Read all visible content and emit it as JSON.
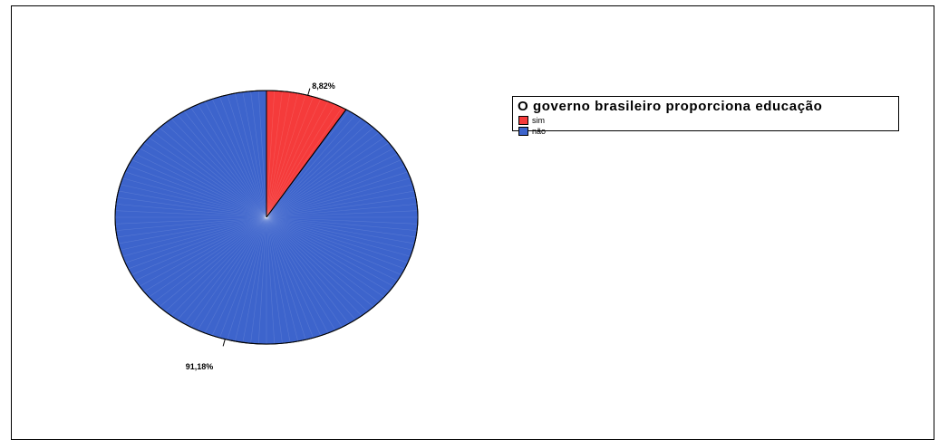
{
  "chart_data": {
    "type": "pie",
    "title": "",
    "legend": {
      "title": "O governo brasileiro proporciona educação",
      "placement": "right"
    },
    "slices": [
      {
        "label": "sim",
        "value": 8.82,
        "display": "8,82%",
        "color": "#f53b3b"
      },
      {
        "label": "não",
        "value": 91.18,
        "display": "91,18%",
        "color": "#3d64cc"
      }
    ]
  }
}
